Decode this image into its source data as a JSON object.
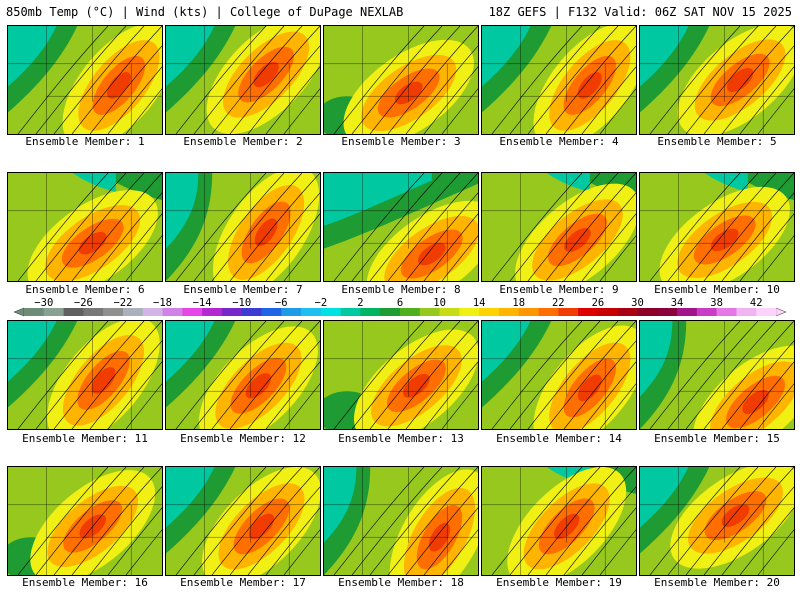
{
  "header": {
    "left_title": "850mb Temp (°C) | Wind (kts) | College of DuPage NEXLAB",
    "right_title": "18Z GEFS | F132 Valid: 06Z SAT NOV 15 2025"
  },
  "panels": [
    {
      "label": "Ensemble Member: 1"
    },
    {
      "label": "Ensemble Member: 2"
    },
    {
      "label": "Ensemble Member: 3"
    },
    {
      "label": "Ensemble Member: 4"
    },
    {
      "label": "Ensemble Member: 5"
    },
    {
      "label": "Ensemble Member: 6"
    },
    {
      "label": "Ensemble Member: 7"
    },
    {
      "label": "Ensemble Member: 8"
    },
    {
      "label": "Ensemble Member: 9"
    },
    {
      "label": "Ensemble Member: 10"
    },
    {
      "label": "Ensemble Member: 11"
    },
    {
      "label": "Ensemble Member: 12"
    },
    {
      "label": "Ensemble Member: 13"
    },
    {
      "label": "Ensemble Member: 14"
    },
    {
      "label": "Ensemble Member: 15"
    },
    {
      "label": "Ensemble Member: 16"
    },
    {
      "label": "Ensemble Member: 17"
    },
    {
      "label": "Ensemble Member: 18"
    },
    {
      "label": "Ensemble Member: 19"
    },
    {
      "label": "Ensemble Member: 20"
    }
  ],
  "colorbar": {
    "units": "°C",
    "tick_labels": [
      "−30",
      "−26",
      "−22",
      "−18",
      "−14",
      "−10",
      "−6",
      "−2",
      "2",
      "6",
      "10",
      "14",
      "18",
      "22",
      "26",
      "30",
      "34",
      "38",
      "42"
    ],
    "colors": [
      "#6e8c78",
      "#8aa094",
      "#606060",
      "#787878",
      "#909090",
      "#aab0bc",
      "#d2b4e6",
      "#d282e6",
      "#e646e6",
      "#b428d2",
      "#7828c8",
      "#3c3cd2",
      "#1e64e6",
      "#1e9be6",
      "#1ebef0",
      "#00e1e1",
      "#00c8a0",
      "#00b464",
      "#1e9b32",
      "#50af1e",
      "#96c81e",
      "#c8dc14",
      "#f0f014",
      "#ffd200",
      "#ffb400",
      "#ff9600",
      "#ff6e00",
      "#f03c00",
      "#dc0000",
      "#c80000",
      "#aa0014",
      "#8c0028",
      "#8c003c",
      "#a0148c",
      "#c83cc8",
      "#e678e6",
      "#f0b4f0",
      "#fad2fa"
    ]
  },
  "palette": {
    "cold": "#00c8a0",
    "cyan": "#00e1e1",
    "green": "#1e9b32",
    "lime": "#96c81e",
    "yellow": "#f0f014",
    "orange": "#ffb400",
    "dark_orange": "#ff6e00",
    "red": "#f03c00",
    "blue": "#1e9be6"
  }
}
